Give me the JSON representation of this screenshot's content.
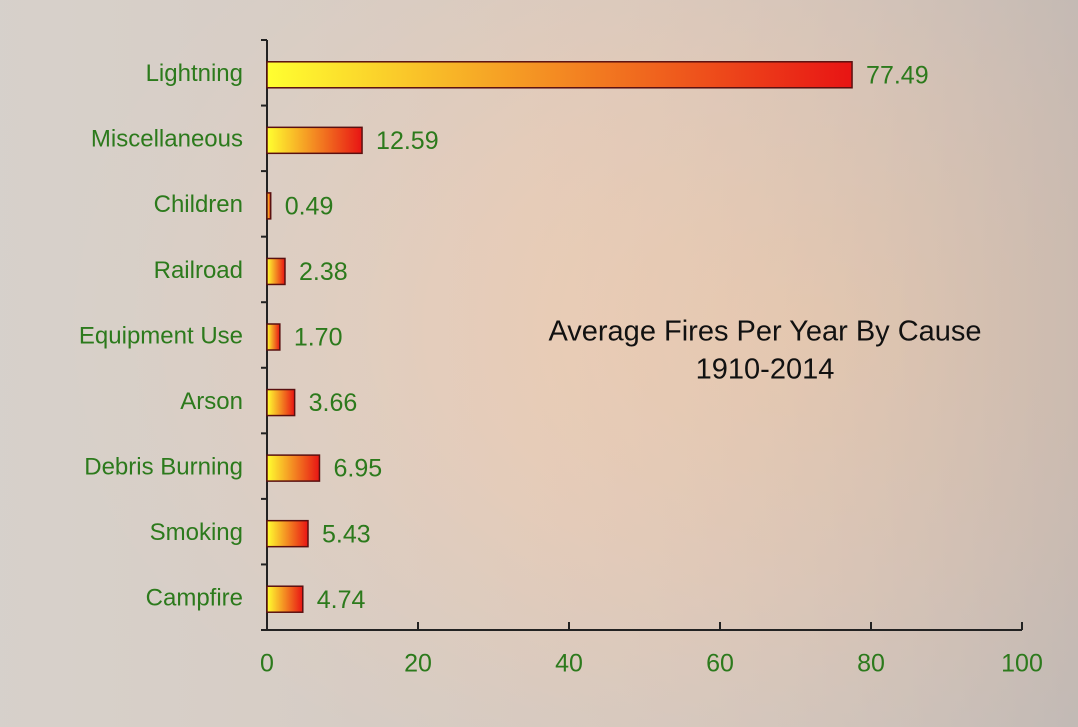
{
  "chart_data": {
    "type": "hbar",
    "title": "Average Fires Per Year By Cause",
    "subtitle": "1910-2014",
    "categories": [
      "Lightning",
      "Miscellaneous",
      "Children",
      "Railroad",
      "Equipment Use",
      "Arson",
      "Debris Burning",
      "Smoking",
      "Campfire"
    ],
    "values": [
      77.49,
      12.59,
      0.49,
      2.38,
      1.7,
      3.66,
      6.95,
      5.43,
      4.74
    ],
    "value_labels": [
      "77.49",
      "12.59",
      "0.49",
      "2.38",
      "1.70",
      "3.66",
      "6.95",
      "5.43",
      "4.74"
    ],
    "colors": [
      "#ffff30",
      "#e81414"
    ],
    "xlim": [
      0,
      100
    ],
    "xticks": [
      0,
      20,
      40,
      60,
      80,
      100
    ]
  }
}
